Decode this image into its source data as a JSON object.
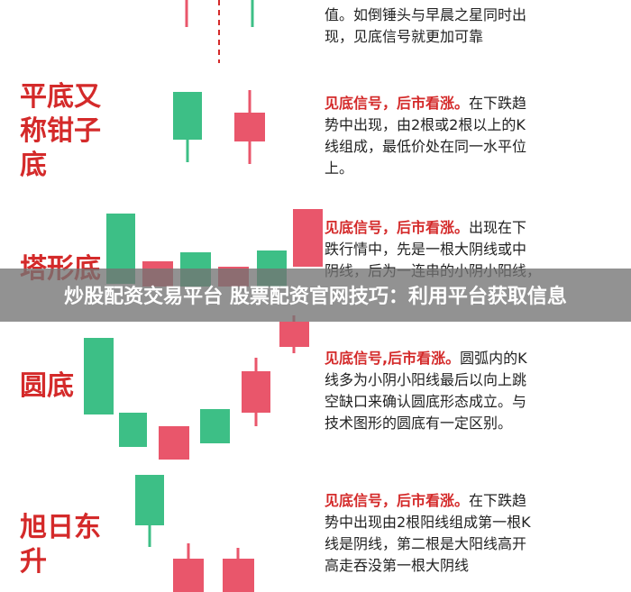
{
  "sections": [
    {
      "lines": [
        "值。如倒锤头与早晨之星同时出",
        "现，见底信号就更加可靠"
      ]
    },
    {
      "label": [
        "平底又",
        "称钳子",
        "底"
      ],
      "highlight": "见底信号，后市看涨。",
      "lines": [
        "在下跌趋",
        "势中出现，由2根或2根以上的K",
        "线组成，最低价处在同一水平位",
        "上。"
      ]
    },
    {
      "label": [
        "塔形底"
      ],
      "highlight": "见底信号，后市看涨。",
      "lines": [
        "出现在下",
        "跌行情中，先是一根大阴线或中",
        "阴线，后为一连串的小阴小阳线，"
      ]
    },
    {
      "label": [
        "圆底"
      ],
      "highlight": "见底信号,后市看涨。",
      "lines": [
        "圆弧内的K",
        "线多为小阴小阳线最后以向上跳",
        "空缺口来确认圆底形态成立。与",
        "技术图形的圆底有一定区别。"
      ]
    },
    {
      "label": [
        "旭日东",
        "升"
      ],
      "highlight": "见底信号，后市看涨。",
      "lines": [
        "在下跌趋",
        "势中出现由2根阳线组成第一根K",
        "线是阴线，第二根是大阳线高开",
        "高走吞没第一根大阴线"
      ]
    }
  ],
  "banner": "炒股配资交易平台 股票配资官网技巧：利用平台获取信息"
}
